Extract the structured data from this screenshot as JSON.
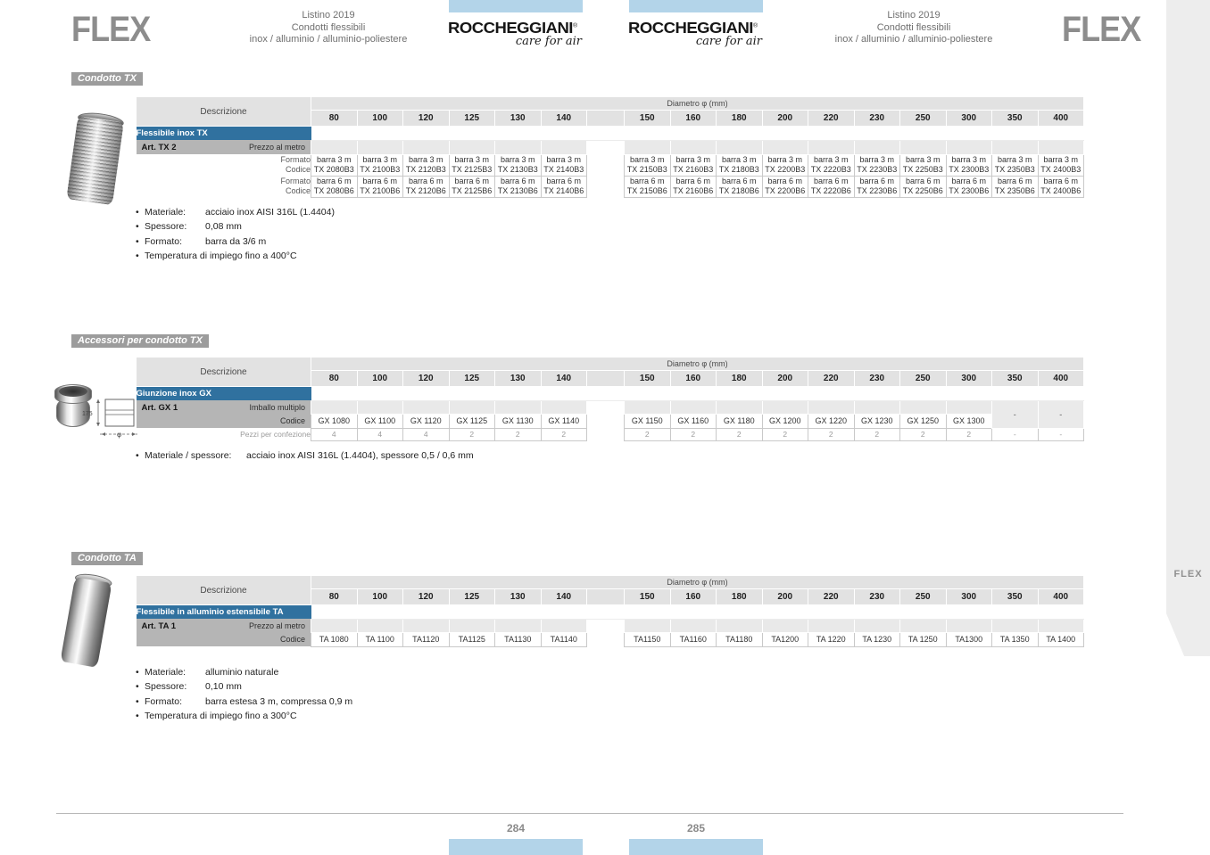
{
  "header": {
    "left_logo": "FLEX",
    "right_logo": "FLEX",
    "subtitle_lines": [
      "Listino 2019",
      "Condotti flessibili",
      "inox / alluminio / alluminio-poliestere"
    ],
    "brand": {
      "name": "ROCCHEGGIANI",
      "reg_mark": "®",
      "tagline": "care for air"
    }
  },
  "side_tab_label": "FLEX",
  "footer": {
    "page_left": "284",
    "page_right": "285"
  },
  "labels": {
    "descrizione": "Descrizione",
    "diametro": "Diametro φ (mm)",
    "formato": "Formato",
    "codice": "Codice",
    "pezzi_per_confezione": "Pezzi per confezione"
  },
  "diameters": [
    "80",
    "100",
    "120",
    "125",
    "130",
    "140",
    "150",
    "160",
    "180",
    "200",
    "220",
    "230",
    "250",
    "300",
    "350",
    "400"
  ],
  "colors": {
    "product_row_blue": "#30719f",
    "art_row_gray": "#b5b5b5",
    "header_gray": "#e2e2e2",
    "light_blue": "#b3d4e9",
    "badge_gray": "#9c9c9c",
    "logo_gray": "#8d8d8d"
  },
  "sections": {
    "tx": {
      "badge": "Condotto TX",
      "product_name": "Flessibile inox TX",
      "art": "Art. TX 2",
      "price_label": "Prezzo al metro",
      "rows": [
        {
          "formato": "barra 3 m",
          "codes": [
            "TX 2080B3",
            "TX 2100B3",
            "TX 2120B3",
            "TX 2125B3",
            "TX 2130B3",
            "TX 2140B3",
            "TX 2150B3",
            "TX 2160B3",
            "TX 2180B3",
            "TX 2200B3",
            "TX 2220B3",
            "TX 2230B3",
            "TX 2250B3",
            "TX 2300B3",
            "TX 2350B3",
            "TX 2400B3"
          ]
        },
        {
          "formato": "barra 6 m",
          "codes": [
            "TX 2080B6",
            "TX 2100B6",
            "TX 2120B6",
            "TX 2125B6",
            "TX 2130B6",
            "TX 2140B6",
            "TX 2150B6",
            "TX 2160B6",
            "TX 2180B6",
            "TX 2200B6",
            "TX 2220B6",
            "TX 2230B6",
            "TX 2250B6",
            "TX 2300B6",
            "TX 2350B6",
            "TX 2400B6"
          ]
        }
      ],
      "bullets": [
        {
          "label": "Materiale:",
          "value": "acciaio inox AISI 316L (1.4404)"
        },
        {
          "label": "Spessore:",
          "value": "0,08 mm"
        },
        {
          "label": "Formato:",
          "value": "barra da 3/6 m"
        },
        {
          "label": "Temperatura di impiego fino a 400°C",
          "value": ""
        }
      ]
    },
    "gx": {
      "badge": "Accessori per condotto TX",
      "product_name": "Giunzione inox GX",
      "art": "Art. GX 1",
      "price_label": "Imballo multiplo",
      "codes": [
        "GX 1080",
        "GX 1100",
        "GX 1120",
        "GX 1125",
        "GX 1130",
        "GX 1140",
        "GX 1150",
        "GX 1160",
        "GX 1180",
        "GX 1200",
        "GX 1220",
        "GX 1230",
        "GX 1250",
        "GX 1300",
        "-",
        "-"
      ],
      "pezzi": [
        "4",
        "4",
        "4",
        "2",
        "2",
        "2",
        "2",
        "2",
        "2",
        "2",
        "2",
        "2",
        "2",
        "2",
        "-",
        "-"
      ],
      "diagram": {
        "height_dim": "175",
        "diameter_symbol": "φ"
      },
      "bullets": [
        {
          "label": "Materiale / spessore:",
          "value": "acciaio inox AISI 316L (1.4404), spessore 0,5 / 0,6 mm"
        }
      ]
    },
    "ta": {
      "badge": "Condotto TA",
      "product_name": "Flessibile in alluminio estensibile TA",
      "art": "Art. TA 1",
      "price_label": "Prezzo al metro",
      "codes": [
        "TA 1080",
        "TA 1100",
        "TA1120",
        "TA1125",
        "TA1130",
        "TA1140",
        "TA1150",
        "TA1160",
        "TA1180",
        "TA1200",
        "TA 1220",
        "TA 1230",
        "TA 1250",
        "TA1300",
        "TA 1350",
        "TA 1400"
      ],
      "bullets": [
        {
          "label": "Materiale:",
          "value": "alluminio naturale"
        },
        {
          "label": "Spessore:",
          "value": "0,10 mm"
        },
        {
          "label": "Formato:",
          "value": "barra estesa 3 m, compressa 0,9 m"
        },
        {
          "label": "Temperatura di impiego fino a 300°C",
          "value": ""
        }
      ]
    }
  }
}
